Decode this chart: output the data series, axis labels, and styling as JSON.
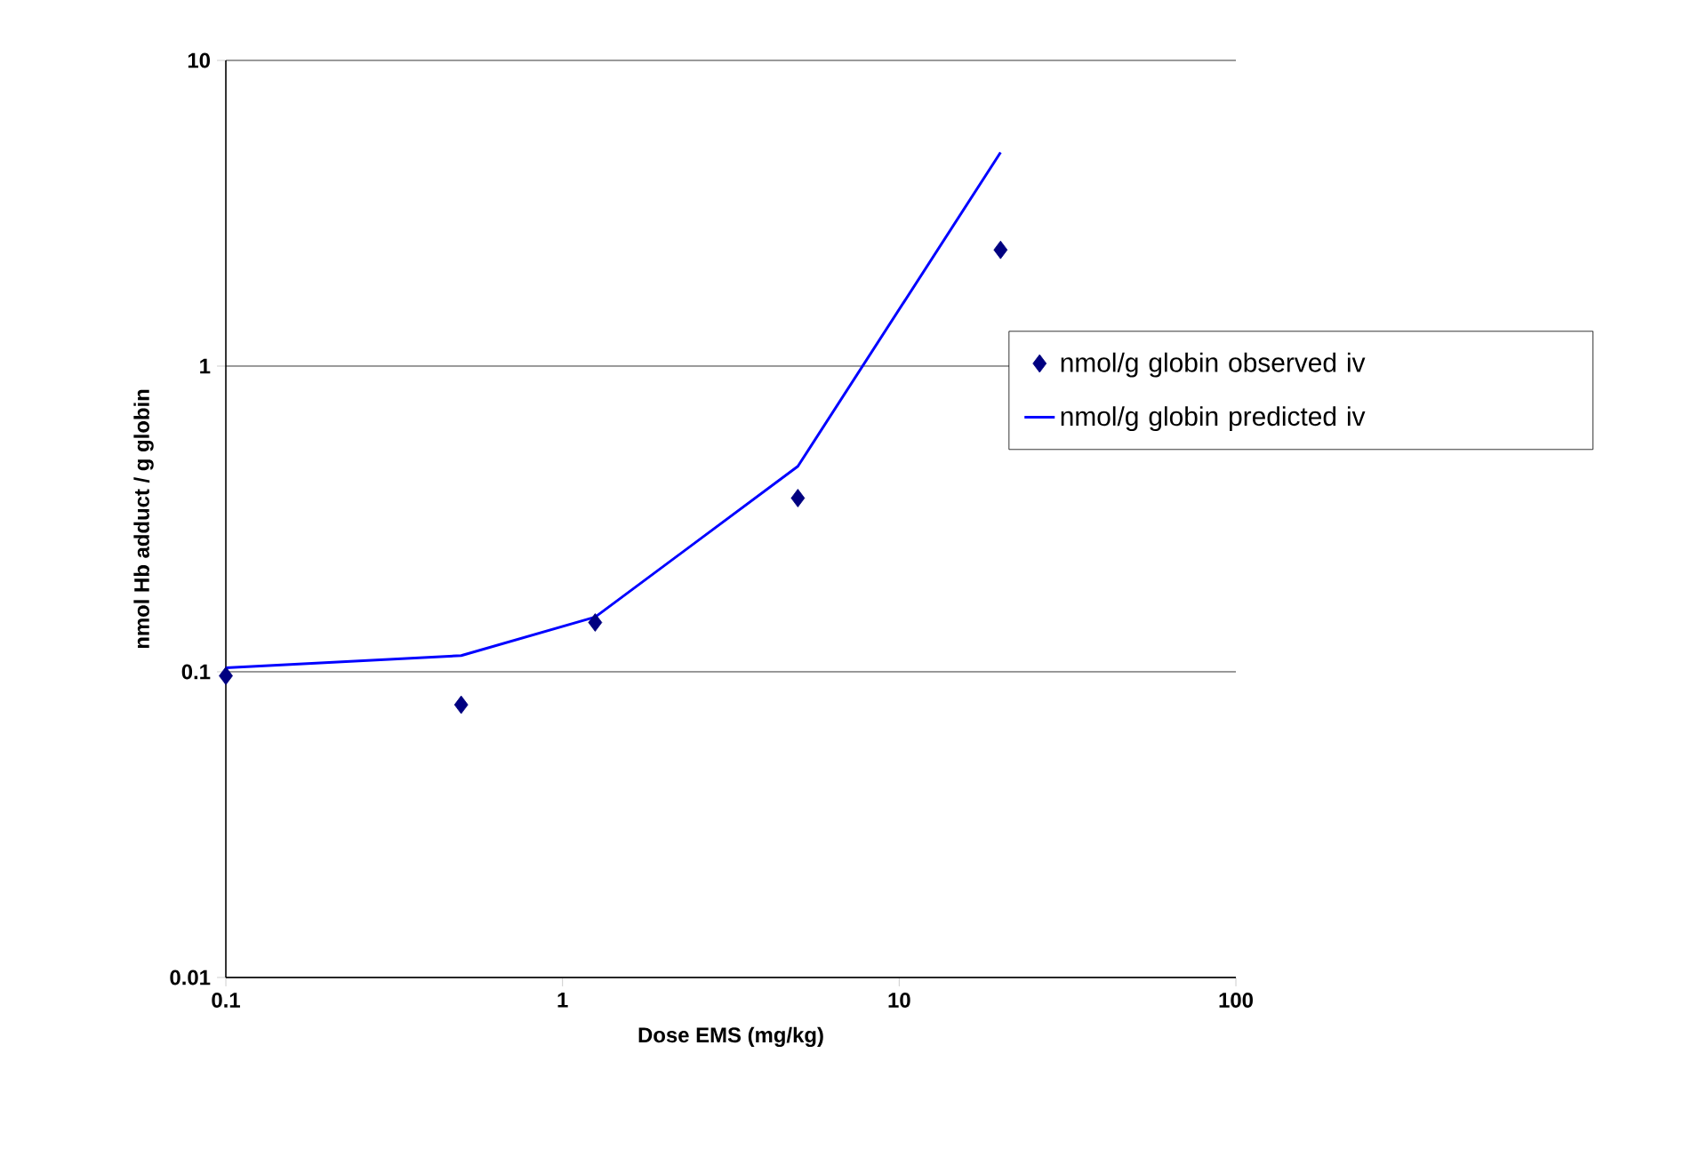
{
  "chart_data": {
    "type": "scatter",
    "xlabel": "Dose EMS (mg/kg)",
    "ylabel": "nmol Hb adduct / g globin",
    "log": "xy",
    "xlim": [
      0.1,
      100
    ],
    "ylim": [
      0.01,
      10
    ],
    "xticks": [
      0.1,
      1,
      10,
      100
    ],
    "yticks": [
      0.01,
      0.1,
      1,
      10
    ],
    "grid": "y",
    "legend": "right",
    "series": [
      {
        "name": "nmol/g globin observed iv",
        "marker": "diamond",
        "color": "#000080",
        "x": [
          0.1,
          0.5,
          1.25,
          5,
          20
        ],
        "values": [
          0.097,
          0.078,
          0.145,
          0.37,
          2.4
        ]
      },
      {
        "name": "nmol/g globin predicted iv",
        "type": "line",
        "marker": "none",
        "line_style": "solid",
        "color": "#0000ff",
        "x": [
          0.1,
          0.5,
          1.25,
          5,
          20
        ],
        "values": [
          0.103,
          0.113,
          0.151,
          0.47,
          5
        ]
      }
    ]
  }
}
